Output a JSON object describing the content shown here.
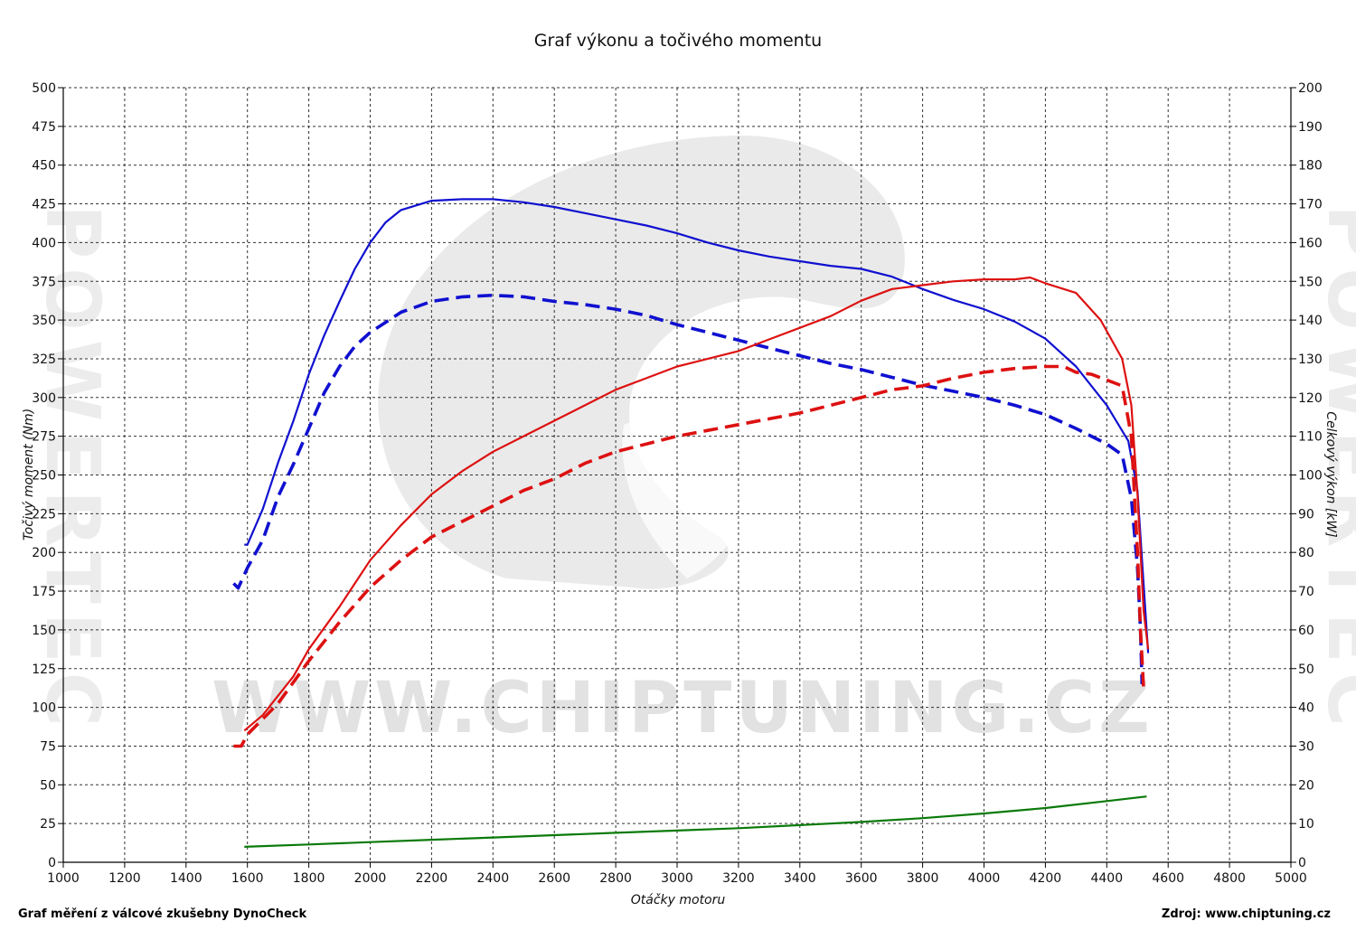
{
  "chart_data": {
    "type": "line",
    "title": "Graf výkonu a točivého momentu",
    "xlabel": "Otáčky motoru",
    "ylabel_left": "Točivý moment (Nm)",
    "ylabel_right": "Celkový výkon [kW]",
    "xlim": [
      1000,
      5000
    ],
    "ylim_left": [
      0,
      500
    ],
    "ylim_right": [
      0,
      200
    ],
    "x_ticks": [
      1000,
      1200,
      1400,
      1600,
      1800,
      2000,
      2200,
      2400,
      2600,
      2800,
      3000,
      3200,
      3400,
      3600,
      3800,
      4000,
      4200,
      4400,
      4600,
      4800,
      5000
    ],
    "y_left_ticks": [
      0,
      25,
      50,
      75,
      100,
      125,
      150,
      175,
      200,
      225,
      250,
      275,
      300,
      325,
      350,
      375,
      400,
      425,
      450,
      475,
      500
    ],
    "y_right_ticks": [
      0,
      10,
      20,
      30,
      40,
      50,
      60,
      70,
      80,
      90,
      100,
      110,
      120,
      130,
      140,
      150,
      160,
      170,
      180,
      190,
      200
    ],
    "grid": true,
    "watermark": "WWW.CHIPTUNING.CZ",
    "side_watermark": "POWERTEC",
    "series": [
      {
        "axis": "left",
        "color": "#1010d0",
        "dash": false,
        "points": [
          [
            1590,
            205
          ],
          [
            1600,
            205
          ],
          [
            1650,
            228
          ],
          [
            1700,
            258
          ],
          [
            1750,
            285
          ],
          [
            1800,
            315
          ],
          [
            1850,
            340
          ],
          [
            1900,
            362
          ],
          [
            1950,
            383
          ],
          [
            2000,
            400
          ],
          [
            2050,
            413
          ],
          [
            2100,
            421
          ],
          [
            2200,
            427
          ],
          [
            2300,
            428
          ],
          [
            2400,
            428
          ],
          [
            2500,
            426
          ],
          [
            2600,
            423
          ],
          [
            2700,
            419
          ],
          [
            2800,
            415
          ],
          [
            2900,
            411
          ],
          [
            3000,
            406
          ],
          [
            3100,
            400
          ],
          [
            3200,
            395
          ],
          [
            3300,
            391
          ],
          [
            3400,
            388
          ],
          [
            3500,
            385
          ],
          [
            3600,
            383
          ],
          [
            3700,
            378
          ],
          [
            3800,
            370
          ],
          [
            3900,
            363
          ],
          [
            4000,
            357
          ],
          [
            4100,
            349
          ],
          [
            4200,
            338
          ],
          [
            4300,
            320
          ],
          [
            4400,
            295
          ],
          [
            4470,
            272
          ],
          [
            4500,
            240
          ],
          [
            4520,
            180
          ],
          [
            4535,
            135
          ]
        ]
      },
      {
        "axis": "left",
        "color": "#1010d0",
        "dash": true,
        "points": [
          [
            1555,
            180
          ],
          [
            1570,
            177
          ],
          [
            1600,
            190
          ],
          [
            1650,
            208
          ],
          [
            1700,
            236
          ],
          [
            1750,
            257
          ],
          [
            1800,
            280
          ],
          [
            1850,
            303
          ],
          [
            1900,
            320
          ],
          [
            1950,
            333
          ],
          [
            2000,
            342
          ],
          [
            2100,
            355
          ],
          [
            2200,
            362
          ],
          [
            2300,
            365
          ],
          [
            2400,
            366
          ],
          [
            2500,
            365
          ],
          [
            2600,
            362
          ],
          [
            2700,
            360
          ],
          [
            2800,
            357
          ],
          [
            2900,
            353
          ],
          [
            3000,
            347
          ],
          [
            3100,
            342
          ],
          [
            3200,
            337
          ],
          [
            3300,
            332
          ],
          [
            3400,
            327
          ],
          [
            3500,
            322
          ],
          [
            3600,
            318
          ],
          [
            3700,
            313
          ],
          [
            3800,
            308
          ],
          [
            3900,
            304
          ],
          [
            4000,
            300
          ],
          [
            4100,
            295
          ],
          [
            4200,
            289
          ],
          [
            4300,
            280
          ],
          [
            4400,
            270
          ],
          [
            4450,
            263
          ],
          [
            4480,
            235
          ],
          [
            4500,
            190
          ],
          [
            4510,
            150
          ],
          [
            4515,
            115
          ]
        ]
      },
      {
        "axis": "right",
        "color": "#dd1111",
        "dash": false,
        "points": [
          [
            1590,
            34
          ],
          [
            1650,
            38
          ],
          [
            1700,
            43
          ],
          [
            1750,
            48
          ],
          [
            1800,
            55
          ],
          [
            1900,
            66
          ],
          [
            2000,
            78
          ],
          [
            2100,
            87
          ],
          [
            2200,
            95
          ],
          [
            2300,
            101
          ],
          [
            2400,
            106
          ],
          [
            2500,
            110
          ],
          [
            2600,
            114
          ],
          [
            2700,
            118
          ],
          [
            2800,
            122
          ],
          [
            2900,
            125
          ],
          [
            3000,
            128
          ],
          [
            3100,
            130
          ],
          [
            3200,
            132
          ],
          [
            3300,
            135
          ],
          [
            3400,
            138
          ],
          [
            3500,
            141
          ],
          [
            3600,
            145
          ],
          [
            3700,
            148
          ],
          [
            3800,
            149
          ],
          [
            3900,
            150
          ],
          [
            4000,
            150.5
          ],
          [
            4100,
            150.5
          ],
          [
            4150,
            151
          ],
          [
            4200,
            149.5
          ],
          [
            4300,
            147
          ],
          [
            4380,
            140
          ],
          [
            4450,
            130
          ],
          [
            4480,
            118
          ],
          [
            4500,
            95
          ],
          [
            4520,
            65
          ],
          [
            4535,
            55
          ]
        ]
      },
      {
        "axis": "right",
        "color": "#dd1111",
        "dash": true,
        "points": [
          [
            1555,
            30
          ],
          [
            1580,
            30
          ],
          [
            1600,
            33
          ],
          [
            1700,
            41
          ],
          [
            1800,
            52
          ],
          [
            1900,
            62
          ],
          [
            2000,
            71
          ],
          [
            2100,
            78
          ],
          [
            2200,
            84
          ],
          [
            2300,
            88
          ],
          [
            2400,
            92
          ],
          [
            2500,
            96
          ],
          [
            2600,
            99
          ],
          [
            2700,
            103
          ],
          [
            2800,
            106
          ],
          [
            2900,
            108
          ],
          [
            3000,
            110
          ],
          [
            3100,
            111.5
          ],
          [
            3200,
            113
          ],
          [
            3300,
            114.5
          ],
          [
            3400,
            116
          ],
          [
            3500,
            118
          ],
          [
            3600,
            120
          ],
          [
            3700,
            122
          ],
          [
            3800,
            123
          ],
          [
            3900,
            125
          ],
          [
            4000,
            126.5
          ],
          [
            4100,
            127.5
          ],
          [
            4200,
            128
          ],
          [
            4260,
            128
          ],
          [
            4300,
            126.5
          ],
          [
            4350,
            126
          ],
          [
            4450,
            123
          ],
          [
            4480,
            110
          ],
          [
            4500,
            80
          ],
          [
            4510,
            60
          ],
          [
            4520,
            45
          ]
        ]
      },
      {
        "axis": "left",
        "color": "#0a7a0a",
        "dash": false,
        "points": [
          [
            1590,
            10
          ],
          [
            1800,
            11.5
          ],
          [
            2000,
            13
          ],
          [
            2200,
            14.5
          ],
          [
            2400,
            16
          ],
          [
            2600,
            17.5
          ],
          [
            2800,
            19
          ],
          [
            3000,
            20.5
          ],
          [
            3200,
            22
          ],
          [
            3400,
            24
          ],
          [
            3600,
            26
          ],
          [
            3800,
            28.5
          ],
          [
            4000,
            31.5
          ],
          [
            4200,
            35
          ],
          [
            4400,
            39.5
          ],
          [
            4530,
            42.5
          ]
        ]
      }
    ]
  },
  "footer": {
    "left": "Graf měření z válcové zkušebny DynoCheck",
    "right": "Zdroj: www.chiptuning.cz"
  }
}
